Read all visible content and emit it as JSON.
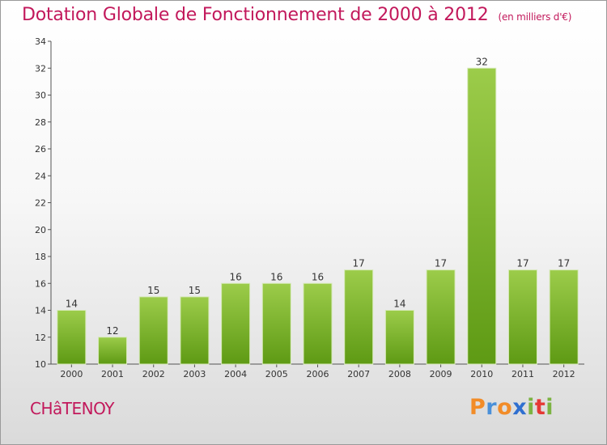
{
  "header": {
    "title": "Dotation Globale de Fonctionnement de 2000 à 2012",
    "subtitle": "(en milliers d'€)"
  },
  "footer": {
    "city": "CHâTENOY",
    "logo_letters": [
      {
        "ch": "P",
        "color": "#f28c28"
      },
      {
        "ch": "r",
        "color": "#4a90d9"
      },
      {
        "ch": "o",
        "color": "#f28c28"
      },
      {
        "ch": "x",
        "color": "#2f6fd0"
      },
      {
        "ch": "i",
        "color": "#7cb342"
      },
      {
        "ch": "t",
        "color": "#e53935"
      },
      {
        "ch": "i",
        "color": "#7cb342"
      }
    ]
  },
  "chart_data": {
    "type": "bar",
    "title": "Dotation Globale de Fonctionnement de 2000 à 2012",
    "subtitle": "(en milliers d'€)",
    "categories": [
      "2000",
      "2001",
      "2002",
      "2003",
      "2004",
      "2005",
      "2006",
      "2007",
      "2008",
      "2009",
      "2010",
      "2011",
      "2012"
    ],
    "values": [
      14,
      12,
      15,
      15,
      16,
      16,
      16,
      17,
      14,
      17,
      32,
      17,
      17
    ],
    "ylim": [
      10,
      34
    ],
    "yticks": [
      10,
      12,
      14,
      16,
      18,
      20,
      22,
      24,
      26,
      28,
      30,
      32,
      34
    ],
    "bar_color_top": "#9ccc4a",
    "bar_color_bottom": "#5e9a14",
    "grid": false,
    "legend": "none"
  }
}
